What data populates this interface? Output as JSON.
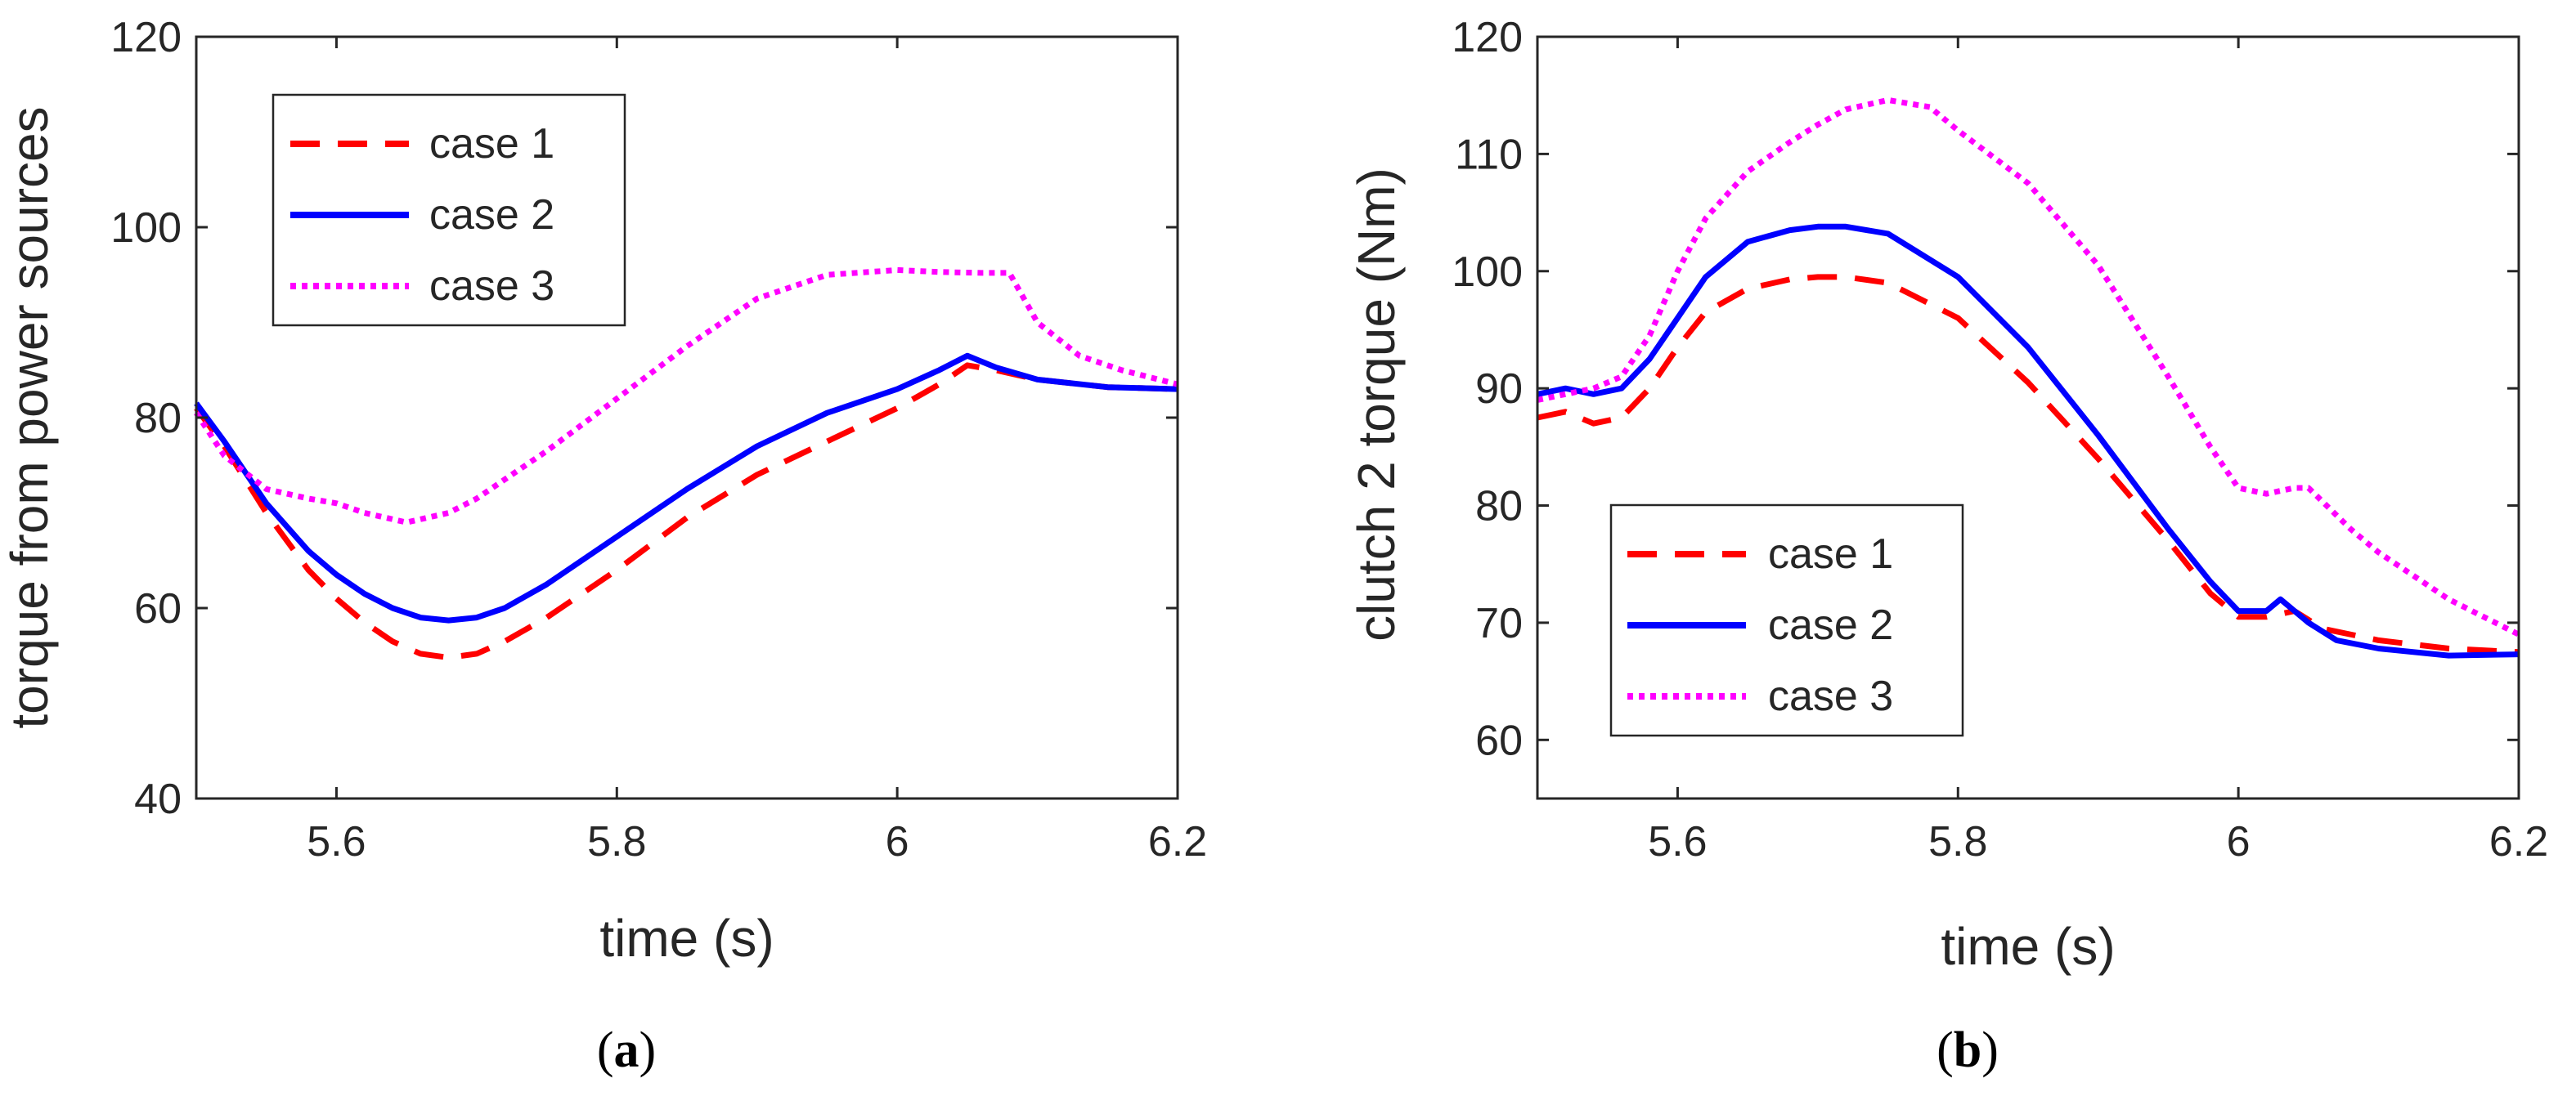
{
  "chart_data": [
    {
      "type": "line",
      "panel_label": {
        "open": "(",
        "letter": "a",
        "close": ")"
      },
      "title": "",
      "xlabel": "time (s)",
      "ylabel": "torque from power sources",
      "xlim": [
        5.5,
        6.2
      ],
      "ylim": [
        40,
        120
      ],
      "xticks": [
        5.6,
        5.8,
        6,
        6.2
      ],
      "xtick_labels": [
        "5.6",
        "5.8",
        "6",
        "6.2"
      ],
      "yticks": [
        40,
        60,
        80,
        100,
        120
      ],
      "ytick_labels": [
        "40",
        "60",
        "80",
        "100",
        "120"
      ],
      "grid": false,
      "legend": {
        "position": "top-left"
      },
      "series": [
        {
          "name": "case 1",
          "color": "#ff0000",
          "style": "dashed",
          "x": [
            5.5,
            5.52,
            5.55,
            5.58,
            5.6,
            5.62,
            5.64,
            5.66,
            5.68,
            5.7,
            5.72,
            5.75,
            5.8,
            5.85,
            5.9,
            5.95,
            6.0,
            6.03,
            6.05,
            6.07,
            6.1,
            6.15,
            6.2
          ],
          "y": [
            81,
            77,
            70,
            64,
            61,
            58.5,
            56.5,
            55.2,
            54.8,
            55.2,
            56.5,
            59,
            64,
            69.5,
            74,
            77.5,
            81,
            83.5,
            85.5,
            85,
            84,
            83.2,
            83
          ]
        },
        {
          "name": "case 2",
          "color": "#0000ff",
          "style": "solid",
          "x": [
            5.5,
            5.52,
            5.55,
            5.58,
            5.6,
            5.62,
            5.64,
            5.66,
            5.68,
            5.7,
            5.72,
            5.75,
            5.8,
            5.85,
            5.9,
            5.95,
            6.0,
            6.03,
            6.05,
            6.07,
            6.1,
            6.15,
            6.2
          ],
          "y": [
            81.5,
            77.5,
            71,
            66,
            63.5,
            61.5,
            60,
            59,
            58.7,
            59,
            60,
            62.5,
            67.5,
            72.5,
            77,
            80.5,
            83,
            85,
            86.5,
            85.3,
            84,
            83.2,
            83
          ]
        },
        {
          "name": "case 3",
          "color": "#ff00ff",
          "style": "dotted",
          "x": [
            5.5,
            5.52,
            5.55,
            5.58,
            5.6,
            5.62,
            5.65,
            5.68,
            5.7,
            5.72,
            5.75,
            5.8,
            5.85,
            5.9,
            5.95,
            6.0,
            6.03,
            6.06,
            6.08,
            6.1,
            6.13,
            6.16,
            6.2
          ],
          "y": [
            80.5,
            76,
            72.5,
            71.5,
            71,
            70,
            69,
            70,
            71.5,
            73.5,
            76.5,
            82,
            87.5,
            92.5,
            95,
            95.5,
            95.3,
            95.2,
            95.2,
            90,
            86.5,
            85,
            83.5
          ]
        }
      ]
    },
    {
      "type": "line",
      "panel_label": {
        "open": "(",
        "letter": "b",
        "close": ")"
      },
      "title": "",
      "xlabel": "time (s)",
      "ylabel": "clutch 2 torque (Nm)",
      "xlim": [
        5.5,
        6.2
      ],
      "ylim": [
        55,
        120
      ],
      "xticks": [
        5.6,
        5.8,
        6,
        6.2
      ],
      "xtick_labels": [
        "5.6",
        "5.8",
        "6",
        "6.2"
      ],
      "yticks": [
        60,
        70,
        80,
        90,
        100,
        110,
        120
      ],
      "ytick_labels": [
        "60",
        "70",
        "80",
        "90",
        "100",
        "110",
        "120"
      ],
      "grid": false,
      "legend": {
        "position": "bottom-left"
      },
      "series": [
        {
          "name": "case 1",
          "color": "#ff0000",
          "style": "dashed",
          "x": [
            5.5,
            5.52,
            5.54,
            5.56,
            5.58,
            5.6,
            5.62,
            5.65,
            5.68,
            5.7,
            5.72,
            5.75,
            5.8,
            5.85,
            5.9,
            5.95,
            5.98,
            6.0,
            6.02,
            6.04,
            6.06,
            6.1,
            6.15,
            6.2
          ],
          "y": [
            87.5,
            88,
            87,
            87.5,
            90,
            93.5,
            96.5,
            98.5,
            99.3,
            99.5,
            99.5,
            99,
            96,
            90.5,
            84,
            77,
            72.5,
            70.5,
            70.5,
            71,
            69.5,
            68.5,
            67.8,
            67.5
          ]
        },
        {
          "name": "case 2",
          "color": "#0000ff",
          "style": "solid",
          "x": [
            5.5,
            5.52,
            5.54,
            5.56,
            5.58,
            5.6,
            5.62,
            5.65,
            5.68,
            5.7,
            5.72,
            5.75,
            5.8,
            5.85,
            5.9,
            5.95,
            5.98,
            6.0,
            6.02,
            6.03,
            6.05,
            6.07,
            6.1,
            6.15,
            6.2
          ],
          "y": [
            89.5,
            90,
            89.5,
            90,
            92.5,
            96,
            99.5,
            102.5,
            103.5,
            103.8,
            103.8,
            103.2,
            99.5,
            93.5,
            86,
            78,
            73.5,
            71,
            71,
            72,
            70,
            68.5,
            67.8,
            67.2,
            67.3
          ]
        },
        {
          "name": "case 3",
          "color": "#ff00ff",
          "style": "dotted",
          "x": [
            5.5,
            5.52,
            5.54,
            5.56,
            5.58,
            5.6,
            5.62,
            5.65,
            5.68,
            5.7,
            5.72,
            5.75,
            5.78,
            5.8,
            5.85,
            5.9,
            5.95,
            5.98,
            6.0,
            6.02,
            6.04,
            6.05,
            6.08,
            6.1,
            6.15,
            6.2
          ],
          "y": [
            89,
            89.5,
            90,
            91,
            94.5,
            100,
            104.5,
            108.5,
            111,
            112.5,
            113.8,
            114.6,
            114,
            112,
            107.5,
            100.5,
            91,
            85,
            81.5,
            81,
            81.5,
            81.5,
            78,
            76,
            72,
            69
          ]
        }
      ]
    }
  ]
}
